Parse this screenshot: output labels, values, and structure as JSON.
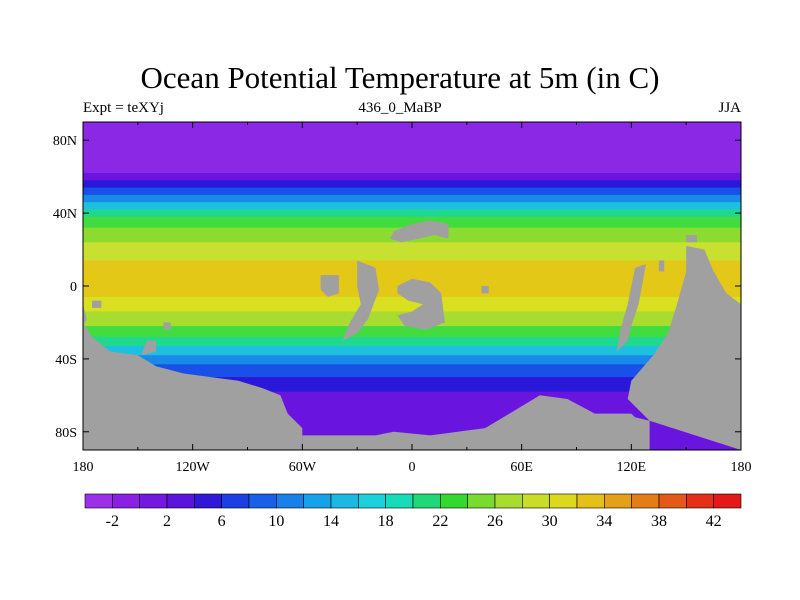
{
  "header": {
    "title": "Ocean Potential Temperature at 5m (in C)",
    "left_label": "Expt = teXYj",
    "center_label": "436_0_MaBP",
    "right_label": "JJA"
  },
  "map": {
    "lon_ticks": [
      "180",
      "120W",
      "60W",
      "0",
      "60E",
      "120E",
      "180"
    ],
    "lat_ticks": [
      "80N",
      "40N",
      "0",
      "40S",
      "80S"
    ],
    "land_color": "#a0a0a0",
    "bands": [
      {
        "lat_top": 90,
        "lat_bot": 62,
        "color": "#8a28e6"
      },
      {
        "lat_top": 62,
        "lat_bot": 58,
        "color": "#6a14e0"
      },
      {
        "lat_top": 58,
        "lat_bot": 54,
        "color": "#2a18d8"
      },
      {
        "lat_top": 54,
        "lat_bot": 50,
        "color": "#1850e8"
      },
      {
        "lat_top": 50,
        "lat_bot": 46,
        "color": "#1a8ae8"
      },
      {
        "lat_top": 46,
        "lat_bot": 42,
        "color": "#1ec0e0"
      },
      {
        "lat_top": 42,
        "lat_bot": 38,
        "color": "#20d890"
      },
      {
        "lat_top": 38,
        "lat_bot": 32,
        "color": "#40dc40"
      },
      {
        "lat_top": 32,
        "lat_bot": 24,
        "color": "#8cdc30"
      },
      {
        "lat_top": 24,
        "lat_bot": 14,
        "color": "#c8e030"
      },
      {
        "lat_top": 14,
        "lat_bot": -6,
        "color": "#e4c818"
      },
      {
        "lat_top": -6,
        "lat_bot": -14,
        "color": "#d8e020"
      },
      {
        "lat_top": -14,
        "lat_bot": -22,
        "color": "#a8dc30"
      },
      {
        "lat_top": -22,
        "lat_bot": -28,
        "color": "#40dc40"
      },
      {
        "lat_top": -28,
        "lat_bot": -33,
        "color": "#20d890"
      },
      {
        "lat_top": -33,
        "lat_bot": -38,
        "color": "#1ec0e0"
      },
      {
        "lat_top": -38,
        "lat_bot": -43,
        "color": "#1a8ae8"
      },
      {
        "lat_top": -43,
        "lat_bot": -50,
        "color": "#1850e8"
      },
      {
        "lat_top": -50,
        "lat_bot": -58,
        "color": "#2a18d8"
      },
      {
        "lat_top": -58,
        "lat_bot": -90,
        "color": "#6a14e0"
      }
    ]
  },
  "colorbar": {
    "labels": [
      "-2",
      "2",
      "6",
      "10",
      "14",
      "18",
      "22",
      "26",
      "30",
      "34",
      "38",
      "42"
    ],
    "colors": [
      "#9b30e8",
      "#8a20e4",
      "#7418e0",
      "#5a14dc",
      "#3018d8",
      "#1a40e4",
      "#1860e8",
      "#1880e8",
      "#18a0e8",
      "#1cb8e4",
      "#1cd0dc",
      "#18dcb8",
      "#20d878",
      "#34d830",
      "#78dc30",
      "#a8dc30",
      "#c8dc28",
      "#dcd820",
      "#e4c018",
      "#e4a018",
      "#e47c18",
      "#e45818",
      "#e43018",
      "#e41818"
    ]
  }
}
